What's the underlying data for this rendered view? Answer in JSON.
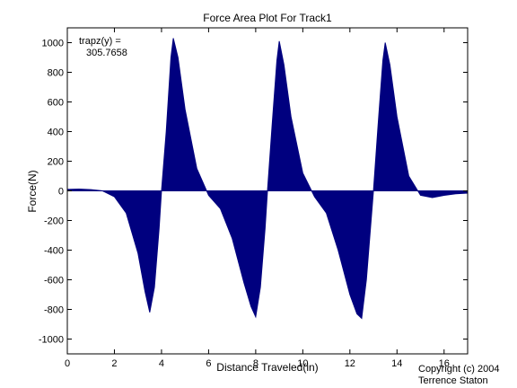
{
  "chart_data": {
    "type": "area",
    "title": "Force Area Plot For Track1",
    "xlabel": "Distance Traveled(in)",
    "ylabel": "Force(N)",
    "xlim": [
      0,
      17
    ],
    "ylim": [
      -1100,
      1100
    ],
    "xticks": [
      0,
      2,
      4,
      6,
      8,
      10,
      12,
      14,
      16
    ],
    "yticks": [
      -1000,
      -800,
      -600,
      -400,
      -200,
      0,
      200,
      400,
      600,
      800,
      1000
    ],
    "fill_color": "#00007f",
    "grid": false,
    "x": [
      0,
      0.5,
      1.0,
      1.5,
      2.0,
      2.5,
      3.0,
      3.3,
      3.5,
      3.7,
      3.9,
      4.0,
      4.2,
      4.4,
      4.5,
      4.7,
      5.0,
      5.5,
      6.0,
      6.5,
      7.0,
      7.5,
      7.8,
      8.0,
      8.2,
      8.4,
      8.5,
      8.7,
      8.9,
      9.0,
      9.2,
      9.5,
      10.0,
      10.5,
      11.0,
      11.5,
      12.0,
      12.3,
      12.5,
      12.7,
      12.9,
      13.0,
      13.2,
      13.4,
      13.5,
      13.7,
      14.0,
      14.5,
      15.0,
      15.5,
      16.0,
      16.5,
      17.0
    ],
    "y": [
      10,
      12,
      8,
      0,
      -40,
      -150,
      -420,
      -680,
      -820,
      -650,
      -250,
      0,
      400,
      900,
      1030,
      900,
      550,
      150,
      -30,
      -120,
      -320,
      -620,
      -780,
      -850,
      -650,
      -250,
      0,
      450,
      880,
      1010,
      850,
      500,
      120,
      -40,
      -150,
      -400,
      -700,
      -830,
      -860,
      -600,
      -200,
      0,
      450,
      880,
      1000,
      850,
      500,
      100,
      -30,
      -45,
      -30,
      -20,
      -15
    ],
    "annotations": [
      "trapz(y) =",
      "305.7658"
    ]
  },
  "copyright": [
    "Copyright (c) 2004",
    "Terrence Staton"
  ]
}
